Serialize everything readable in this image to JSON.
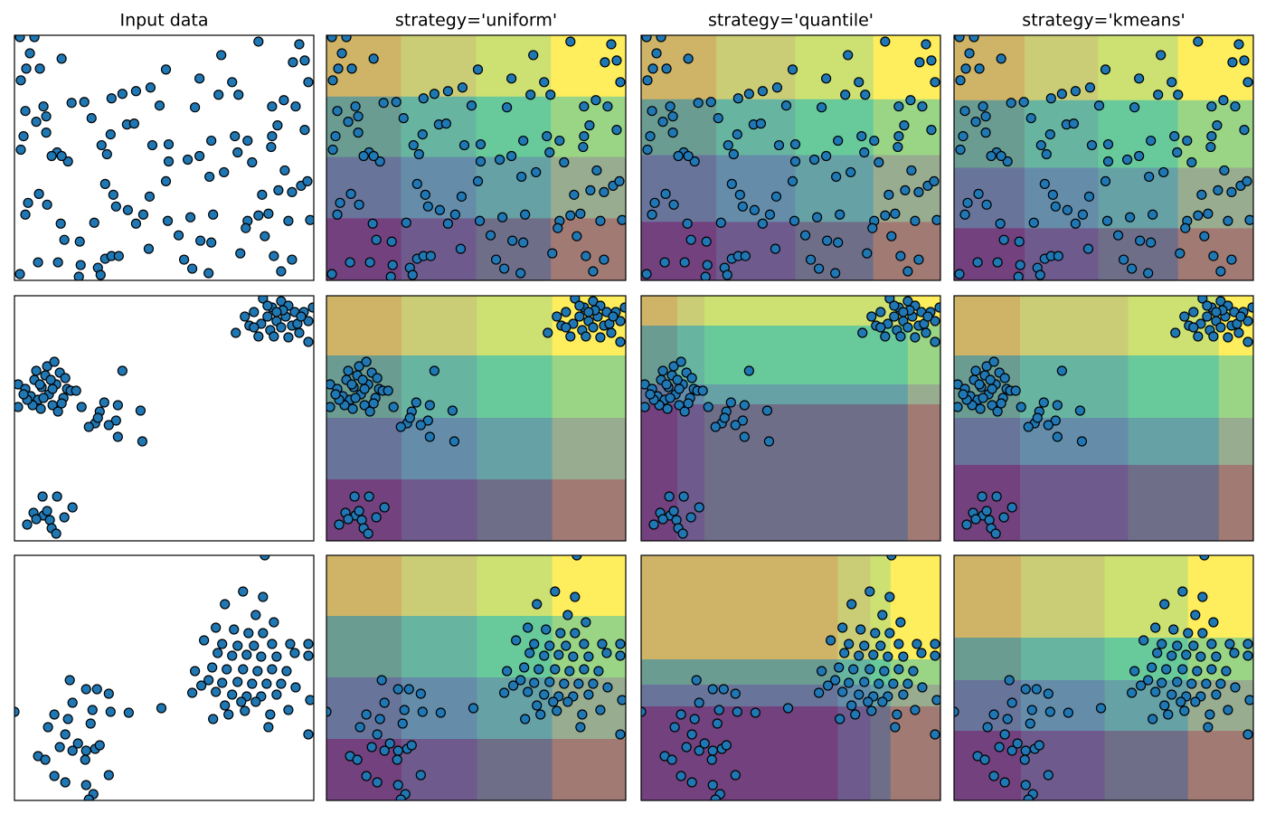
{
  "column_titles": [
    "Input data",
    "strategy='uniform'",
    "strategy='quantile'",
    "strategy='kmeans'"
  ],
  "colormap": [
    "#440154",
    "#31688e",
    "#35b779",
    "#fde725"
  ],
  "alpha": 0.5,
  "chart_data": [
    {
      "type": "scatter",
      "color": "#1f77b4",
      "xlim": [
        0,
        330
      ],
      "ylim": [
        0,
        272
      ],
      "x": [
        6,
        22,
        17,
        28,
        52,
        13,
        167,
        228,
        269,
        314,
        307,
        320,
        324,
        240,
        225,
        247,
        204,
        150,
        119,
        134,
        107,
        77,
        63,
        32,
        35,
        24,
        12,
        85,
        124,
        132,
        106,
        152,
        170,
        96,
        102,
        47,
        59,
        52,
        41,
        10,
        7,
        191,
        204,
        217,
        243,
        257,
        246,
        262,
        283,
        290,
        284,
        297,
        310,
        284,
        320,
        298,
        199,
        170,
        167,
        215,
        231,
        273,
        291,
        306,
        316,
        323,
        280,
        269,
        257,
        302,
        326,
        109,
        112,
        100,
        125,
        142,
        134,
        169,
        181,
        194,
        219,
        205,
        217,
        149,
        27,
        15,
        36,
        12,
        88,
        55,
        51,
        72,
        100,
        107,
        115,
        92,
        95,
        73,
        71,
        48,
        26,
        6,
        148,
        187,
        196,
        214,
        255,
        276,
        249,
        294,
        306,
        286,
        7,
        35,
        160
      ],
      "y": [
        270,
        270,
        252,
        235,
        246,
        235,
        234,
        250,
        265,
        262,
        242,
        244,
        220,
        220,
        206,
        206,
        224,
        214,
        207,
        210,
        202,
        198,
        197,
        193,
        182,
        176,
        188,
        180,
        173,
        174,
        162,
        150,
        151,
        150,
        140,
        142,
        132,
        138,
        138,
        160,
        145,
        134,
        138,
        155,
        160,
        155,
        142,
        131,
        148,
        172,
        193,
        200,
        193,
        160,
        167,
        122,
        192,
        132,
        110,
        115,
        120,
        95,
        100,
        98,
        105,
        110,
        74,
        72,
        66,
        66,
        67,
        95,
        82,
        107,
        78,
        73,
        63,
        66,
        50,
        70,
        73,
        44,
        42,
        93,
        96,
        86,
        84,
        73,
        64,
        45,
        63,
        43,
        24,
        27,
        27,
        14,
        6,
        17,
        4,
        20,
        20,
        7,
        35,
        23,
        13,
        8,
        58,
        49,
        30,
        10,
        23,
        27,
        222,
        164,
        194
      ],
      "binnings": [
        {
          "x_edges": [
            0,
            82.5,
            165,
            247.5,
            330
          ],
          "y_edges": [
            0,
            69,
            137,
            204,
            272
          ]
        },
        {
          "x_edges": [
            0,
            83,
            170,
            256,
            330
          ],
          "y_edges": [
            0,
            65,
            139,
            201,
            272
          ]
        },
        {
          "x_edges": [
            0,
            78,
            159,
            247,
            330
          ],
          "y_edges": [
            0,
            58,
            125,
            200,
            272
          ]
        }
      ]
    },
    {
      "type": "scatter",
      "color": "#1f77b4",
      "xlim": [
        0,
        330
      ],
      "ylim": [
        0,
        271
      ],
      "x": [
        4,
        12,
        18,
        22,
        26,
        30,
        34,
        38,
        42,
        46,
        50,
        54,
        58,
        62,
        29,
        20,
        36,
        44,
        14,
        24,
        40,
        48,
        32,
        56,
        10,
        28,
        52,
        68,
        4,
        42,
        74,
        94,
        99,
        114,
        119,
        112,
        89,
        82,
        104,
        139,
        141,
        114,
        92,
        31,
        47,
        64,
        21,
        32,
        39,
        24,
        55,
        41,
        46,
        14,
        36,
        274,
        294,
        302,
        284,
        264,
        279,
        289,
        299,
        309,
        319,
        324,
        272,
        282,
        294,
        306,
        314,
        324,
        244,
        259,
        269,
        286,
        302,
        312,
        329,
        254,
        296,
        279,
        289,
        316,
        264
      ],
      "y": [
        173,
        168,
        160,
        178,
        156,
        170,
        183,
        162,
        150,
        173,
        186,
        158,
        168,
        166,
        146,
        150,
        193,
        198,
        156,
        188,
        178,
        143,
        158,
        180,
        162,
        173,
        152,
        166,
        148,
        168,
        148,
        143,
        153,
        150,
        188,
        133,
        130,
        126,
        128,
        144,
        110,
        115,
        136,
        49,
        49,
        37,
        31,
        28,
        23,
        24,
        26,
        14,
        8,
        18,
        33,
        268,
        265,
        260,
        258,
        253,
        248,
        243,
        248,
        253,
        253,
        243,
        240,
        233,
        236,
        238,
        230,
        220,
        230,
        238,
        226,
        226,
        225,
        240,
        258,
        248,
        255,
        260,
        253,
        248,
        236
      ],
      "binnings": [
        {
          "x_edges": [
            0,
            83,
            166,
            249,
            330
          ],
          "y_edges": [
            0,
            68,
            136,
            205,
            271
          ]
        },
        {
          "x_edges": [
            0,
            40,
            70,
            294,
            330
          ],
          "y_edges": [
            0,
            151,
            173,
            238,
            271
          ]
        },
        {
          "x_edges": [
            0,
            73,
            192,
            292,
            330
          ],
          "y_edges": [
            0,
            84,
            136,
            205,
            271
          ]
        }
      ]
    },
    {
      "type": "scatter",
      "color": "#1f77b4",
      "xlim": [
        0,
        330
      ],
      "ylim": [
        0,
        271
      ],
      "x": [
        276,
        252,
        274,
        232,
        266,
        286,
        222,
        242,
        258,
        274,
        209,
        229,
        246,
        264,
        284,
        304,
        324,
        224,
        240,
        256,
        272,
        289,
        309,
        199,
        218,
        234,
        252,
        268,
        284,
        300,
        324,
        214,
        229,
        246,
        262,
        278,
        294,
        310,
        222,
        240,
        256,
        272,
        289,
        326,
        232,
        250,
        266,
        282,
        302,
        219,
        236,
        280,
        196,
        162,
        254,
        206,
        61,
        64,
        79,
        91,
        104,
        106,
        126,
        86,
        44,
        59,
        84,
        37,
        56,
        70,
        79,
        89,
        64,
        50,
        94,
        26,
        34,
        78,
        44,
        56,
        79,
        104,
        87,
        82,
        0,
        324
      ],
      "y": [
        271,
        231,
        225,
        217,
        205,
        197,
        191,
        189,
        185,
        185,
        177,
        173,
        171,
        171,
        173,
        173,
        173,
        163,
        160,
        161,
        159,
        159,
        163,
        143,
        147,
        145,
        145,
        143,
        145,
        143,
        160,
        133,
        130,
        131,
        129,
        129,
        129,
        125,
        120,
        117,
        115,
        115,
        117,
        111,
        105,
        109,
        109,
        95,
        100,
        90,
        95,
        81,
        119,
        102,
        99,
        127,
        133,
        108,
        123,
        123,
        118,
        98,
        97,
        100,
        95,
        90,
        85,
        81,
        73,
        63,
        55,
        57,
        55,
        59,
        61,
        49,
        45,
        45,
        27,
        20,
        17,
        28,
        7,
        1,
        98,
        73
      ],
      "binnings": [
        {
          "x_edges": [
            0,
            83,
            166,
            249,
            330
          ],
          "y_edges": [
            0,
            68,
            136,
            204,
            271
          ]
        },
        {
          "x_edges": [
            0,
            217,
            253,
            275,
            330
          ],
          "y_edges": [
            0,
            104,
            128,
            156,
            271
          ]
        },
        {
          "x_edges": [
            0,
            74,
            166,
            258,
            330
          ],
          "y_edges": [
            0,
            77,
            133,
            180,
            271
          ]
        }
      ]
    }
  ]
}
